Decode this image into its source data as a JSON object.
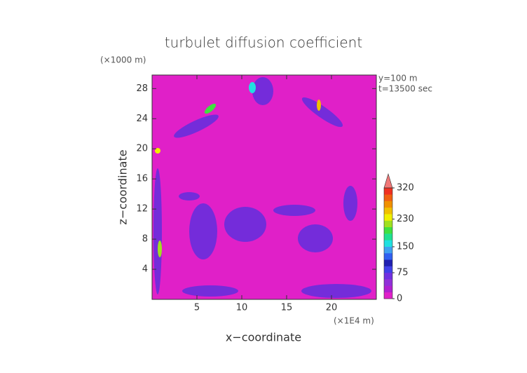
{
  "chart_data": {
    "type": "contour",
    "title": "turbulet diffusion coefficient",
    "y_unit": "(×1000 m)",
    "x_unit": "(×1E4 m)",
    "annotations": [
      "y=100 m",
      "t=13500 sec"
    ],
    "xlabel": "x−coordinate",
    "ylabel": "z−coordinate",
    "xlim": [
      0,
      25
    ],
    "xticks": [
      5,
      10,
      15,
      20
    ],
    "ylim": [
      0,
      29.8
    ],
    "yticks": [
      4,
      8,
      12,
      16,
      20,
      24,
      28
    ],
    "clim": [
      0,
      320
    ],
    "cticks": [
      0,
      75,
      150,
      230,
      320
    ],
    "colors": [
      "#e020c8",
      "#b020d0",
      "#9030d8",
      "#7030e0",
      "#4040e8",
      "#2020b0",
      "#3060f0",
      "#40a0f0",
      "#20e0e0",
      "#20e090",
      "#40e040",
      "#a0e020",
      "#f0f000",
      "#f0c000",
      "#f09000",
      "#f06010",
      "#f03020"
    ],
    "extend_color": "#f07878"
  }
}
